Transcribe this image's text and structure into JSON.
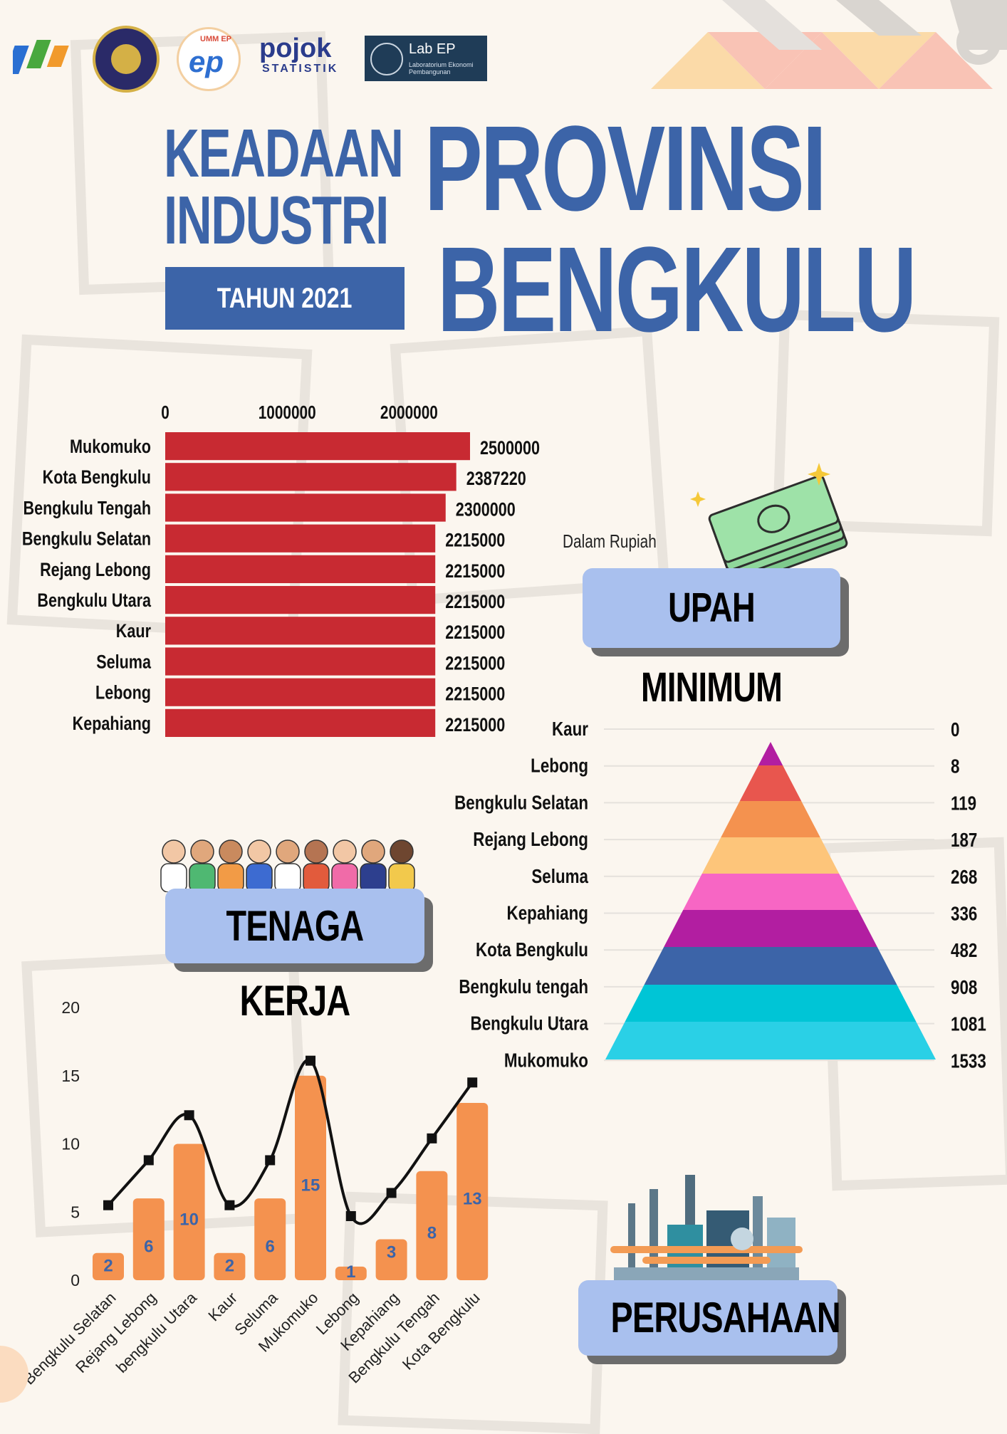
{
  "header": {
    "logos": [
      "BPS",
      "Universitas Muhammadiyah Malang",
      "UMM EP",
      "pojok",
      "STATISTIK",
      "Lab EP",
      "Laboratorium Ekonomi Pembangunan"
    ],
    "title_line1": "KEADAAN",
    "title_line2": "INDUSTRI",
    "year_badge": "TAHUN 2021",
    "big_line1": "PROVINSI",
    "big_line2": "BENGKULU"
  },
  "cards": {
    "upah": "UPAH MINIMUM",
    "upah_note": "Dalam Rupiah",
    "tenaga": "TENAGA KERJA",
    "perusahaan": "PERUSAHAAN"
  },
  "colors": {
    "primary": "#3c64a8",
    "bar_red": "#c82a32",
    "bar_orange": "#f4924f",
    "card": "#a9c0ee"
  },
  "chart_data": [
    {
      "type": "bar",
      "orientation": "horizontal",
      "categories": [
        "Mukomuko",
        "Kota Bengkulu",
        "Bengkulu Tengah",
        "Bengkulu Selatan",
        "Rejang Lebong",
        "Bengkulu Utara",
        "Kaur",
        "Seluma",
        "Lebong",
        "Kepahiang"
      ],
      "values": [
        2500000,
        2387220,
        2300000,
        2215000,
        2215000,
        2215000,
        2215000,
        2215000,
        2215000,
        2215000
      ],
      "ticks": [
        "0",
        "1000000",
        "2000000"
      ],
      "xlim": [
        0,
        2500000
      ]
    },
    {
      "type": "bar",
      "style": "pyramid",
      "categories": [
        "Kaur",
        "Lebong",
        "Bengkulu Selatan",
        "Rejang Lebong",
        "Seluma",
        "Kepahiang",
        "Kota Bengkulu",
        "Bengkulu tengah",
        "Bengkulu Utara",
        "Mukomuko"
      ],
      "values": [
        0,
        8,
        119,
        187,
        268,
        336,
        482,
        908,
        1081,
        1533
      ],
      "colors": [
        "#e8564e",
        "#f4924f",
        "#fdc57a",
        "#f766c4",
        "#b21ea1",
        "#3c64a8",
        "#00c5d6",
        "#2ad0e6",
        "#4ac6f6",
        "#4ac6f6"
      ]
    },
    {
      "type": "bar",
      "overlay": "line",
      "categories": [
        "Bengkulu Selatan",
        "Rejang Lebong",
        "bengkulu Utara",
        "Kaur",
        "Seluma",
        "Mukomuko",
        "Lebong",
        "Kepahiang",
        "Bengkulu Tengah",
        "Kota Bengkulu"
      ],
      "values": [
        2,
        6,
        10,
        2,
        6,
        15,
        1,
        3,
        8,
        13
      ],
      "line_values": [
        5.5,
        8.8,
        12.1,
        5.5,
        8.8,
        16.1,
        4.7,
        6.4,
        10.4,
        14.5
      ],
      "ylim": [
        0,
        20
      ],
      "yticks": [
        "0",
        "5",
        "10",
        "15",
        "20"
      ]
    }
  ]
}
